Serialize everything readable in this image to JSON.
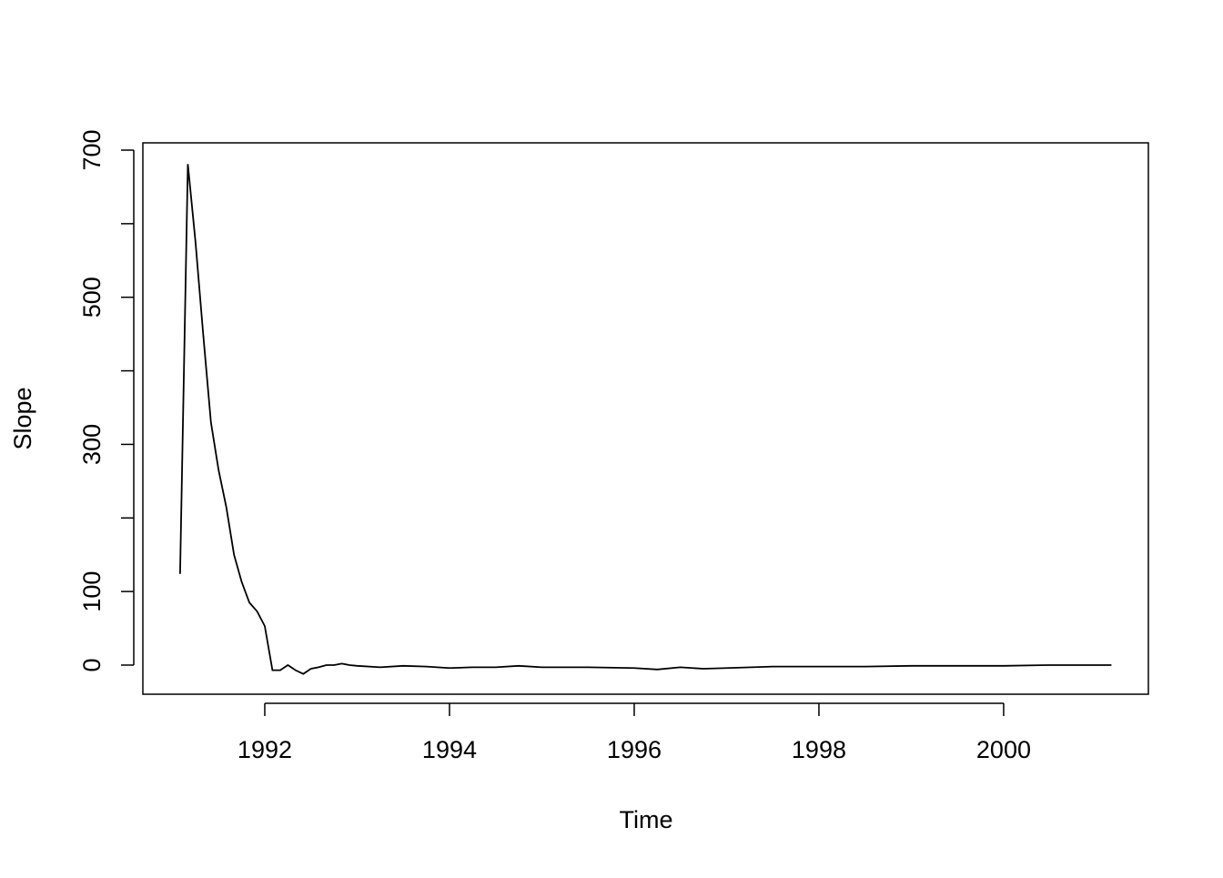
{
  "chart_data": {
    "type": "line",
    "xlabel": "Time",
    "ylabel": "Slope",
    "x": [
      1991.083,
      1991.167,
      1991.25,
      1991.333,
      1991.417,
      1991.5,
      1991.583,
      1991.667,
      1991.75,
      1991.833,
      1991.917,
      1992.0,
      1992.083,
      1992.167,
      1992.25,
      1992.333,
      1992.417,
      1992.5,
      1992.583,
      1992.667,
      1992.75,
      1992.833,
      1992.917,
      1993.0,
      1993.25,
      1993.5,
      1993.75,
      1994.0,
      1994.25,
      1994.5,
      1994.75,
      1995.0,
      1995.5,
      1996.0,
      1996.25,
      1996.5,
      1996.75,
      1997.0,
      1997.5,
      1998.0,
      1998.5,
      1999.0,
      1999.5,
      2000.0,
      2000.5,
      2001.0,
      2001.167
    ],
    "series": [
      {
        "name": "Slope",
        "color": "#000000",
        "values": [
          124,
          681,
          575,
          450,
          330,
          265,
          215,
          150,
          113,
          85,
          73,
          53,
          -7,
          -7,
          0,
          -7,
          -12,
          -5,
          -3,
          0,
          0,
          2,
          0,
          -1,
          -3,
          -1,
          -2,
          -4,
          -3,
          -3,
          -1,
          -3,
          -3,
          -4,
          -6,
          -3,
          -5,
          -4,
          -2,
          -2,
          -2,
          -1,
          -1,
          -1,
          0,
          0,
          0
        ]
      }
    ],
    "xlim": [
      1990.68,
      2001.567
    ],
    "xticks": [
      1992,
      1994,
      1996,
      1998,
      2000
    ],
    "ylim": [
      -39.6,
      709.9
    ],
    "yticks": [
      0,
      100,
      300,
      500,
      700
    ],
    "yminor_ticks": [
      200,
      400,
      600
    ]
  }
}
